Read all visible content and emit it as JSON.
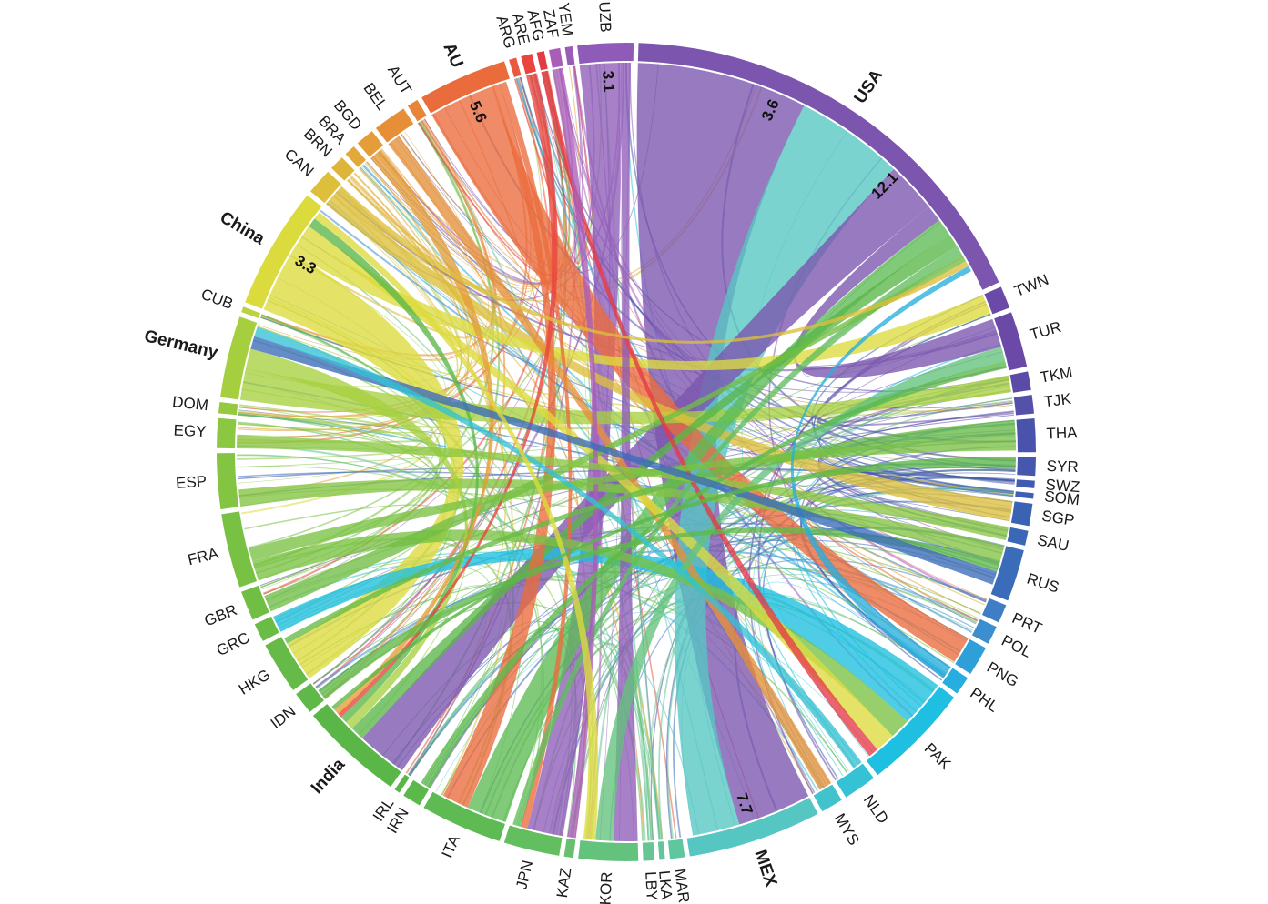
{
  "chart_data": {
    "type": "chord",
    "title": "",
    "nodes": [
      {
        "id": "UZB",
        "label": "UZB",
        "color": "#8e5cb8",
        "weight": 1.5
      },
      {
        "id": "USA",
        "label": "USA",
        "color": "#7b55ae",
        "weight": 12.1,
        "major": true
      },
      {
        "id": "TWN",
        "label": "TWN",
        "color": "#6a4aa6",
        "weight": 0.6
      },
      {
        "id": "TUR",
        "label": "TUR",
        "color": "#6b49a6",
        "weight": 1.5
      },
      {
        "id": "TKM",
        "label": "TKM",
        "color": "#5b4aa6",
        "weight": 0.5
      },
      {
        "id": "TJK",
        "label": "TJK",
        "color": "#5451a8",
        "weight": 0.5
      },
      {
        "id": "THA",
        "label": "THA",
        "color": "#4a53ab",
        "weight": 0.9
      },
      {
        "id": "SYR",
        "label": "SYR",
        "color": "#4657ae",
        "weight": 0.5
      },
      {
        "id": "SWZ",
        "label": "SWZ",
        "color": "#415bb0",
        "weight": 0.2
      },
      {
        "id": "SOM",
        "label": "SOM",
        "color": "#3e60b2",
        "weight": 0.15
      },
      {
        "id": "SGP",
        "label": "SGP",
        "color": "#3b63b4",
        "weight": 0.6
      },
      {
        "id": "SAU",
        "label": "SAU",
        "color": "#3a67b6",
        "weight": 0.4
      },
      {
        "id": "RUS",
        "label": "RUS",
        "color": "#3a6cba",
        "weight": 1.4
      },
      {
        "id": "PRT",
        "label": "PRT",
        "color": "#3f7dc4",
        "weight": 0.5
      },
      {
        "id": "POL",
        "label": "POL",
        "color": "#3b8ecf",
        "weight": 0.5
      },
      {
        "id": "PNG",
        "label": "PNG",
        "color": "#2e9fd9",
        "weight": 0.8
      },
      {
        "id": "PHL",
        "label": "PHL",
        "color": "#26aede",
        "weight": 0.5
      },
      {
        "id": "PAK",
        "label": "PAK",
        "color": "#1ebfe0",
        "weight": 2.9
      },
      {
        "id": "NLD",
        "label": "NLD",
        "color": "#35c2d4",
        "weight": 0.9
      },
      {
        "id": "MYS",
        "label": "MYS",
        "color": "#42c3cb",
        "weight": 0.6
      },
      {
        "id": "MEX",
        "label": "MEX",
        "color": "#56c6c3",
        "weight": 3.6,
        "major": true
      },
      {
        "id": "MAR",
        "label": "MAR",
        "color": "#5ec7a0",
        "weight": 0.4
      },
      {
        "id": "LKA",
        "label": "LKA",
        "color": "#62c69a",
        "weight": 0.15
      },
      {
        "id": "LBY",
        "label": "LBY",
        "color": "#66c593",
        "weight": 0.3
      },
      {
        "id": "KOR",
        "label": "KOR",
        "color": "#63c27c",
        "weight": 1.6
      },
      {
        "id": "KAZ",
        "label": "KAZ",
        "color": "#66c070",
        "weight": 0.25
      },
      {
        "id": "JPN",
        "label": "JPN",
        "color": "#62be5f",
        "weight": 1.5
      },
      {
        "id": "ITA",
        "label": "ITA",
        "color": "#5ebb54",
        "weight": 2.2
      },
      {
        "id": "IRN",
        "label": "IRN",
        "color": "#5bb94c",
        "weight": 0.5
      },
      {
        "id": "IRL",
        "label": "IRL",
        "color": "#58b747",
        "weight": 0.15
      },
      {
        "id": "India",
        "label": "India",
        "color": "#5ab646",
        "weight": 2.8,
        "major": true
      },
      {
        "id": "IDN",
        "label": "IDN",
        "color": "#60b848",
        "weight": 0.6
      },
      {
        "id": "HKG",
        "label": "HKG",
        "color": "#66ba47",
        "weight": 1.4
      },
      {
        "id": "GRC",
        "label": "GRC",
        "color": "#6bbc46",
        "weight": 0.5
      },
      {
        "id": "GBR",
        "label": "GBR",
        "color": "#71be44",
        "weight": 0.8
      },
      {
        "id": "FRA",
        "label": "FRA",
        "color": "#79c143",
        "weight": 2.0
      },
      {
        "id": "ESP",
        "label": "ESP",
        "color": "#83c442",
        "weight": 1.5
      },
      {
        "id": "EGY",
        "label": "EGY",
        "color": "#8cc741",
        "weight": 0.8
      },
      {
        "id": "DOM",
        "label": "DOM",
        "color": "#95c940",
        "weight": 0.3
      },
      {
        "id": "Germany",
        "label": "Germany",
        "color": "#a6cf40",
        "weight": 2.2,
        "major": true
      },
      {
        "id": "CUB",
        "label": "CUB",
        "color": "#bdd23f",
        "weight": 0.15
      },
      {
        "id": "China",
        "label": "China",
        "color": "#dcdb3e",
        "weight": 3.3,
        "major": true
      },
      {
        "id": "CAN",
        "label": "CAN",
        "color": "#ddbf3c",
        "weight": 0.7
      },
      {
        "id": "BRN",
        "label": "BRN",
        "color": "#dfb43b",
        "weight": 0.4
      },
      {
        "id": "BRA",
        "label": "BRA",
        "color": "#e2a83a",
        "weight": 0.3
      },
      {
        "id": "BGD",
        "label": "BGD",
        "color": "#e49d39",
        "weight": 0.5
      },
      {
        "id": "BEL",
        "label": "BEL",
        "color": "#e68f38",
        "weight": 0.9
      },
      {
        "id": "AUT",
        "label": "AUT",
        "color": "#e88538",
        "weight": 0.3
      },
      {
        "id": "AU",
        "label": "AU",
        "color": "#ea6c3c",
        "weight": 2.4,
        "major": true
      },
      {
        "id": "ARG",
        "label": "ARG",
        "color": "#ea5a3e",
        "weight": 0.2
      },
      {
        "id": "ARE",
        "label": "ARE",
        "color": "#e9443f",
        "weight": 0.3
      },
      {
        "id": "AFG",
        "label": "AFG",
        "color": "#e43a46",
        "weight": 0.2
      },
      {
        "id": "ZAF",
        "label": "ZAF",
        "color": "#a95db9",
        "weight": 0.3
      },
      {
        "id": "YEM",
        "label": "YEM",
        "color": "#9b5bb9",
        "weight": 0.2
      }
    ],
    "chords": [
      {
        "source": "USA",
        "target": "MEX",
        "value": 12.1,
        "label": "12.1"
      },
      {
        "source": "MEX",
        "target": "USA",
        "value": 7.7,
        "label": "7.7"
      },
      {
        "source": "USA",
        "target": "India",
        "value": 3.6,
        "label": "3.6"
      },
      {
        "source": "UZB",
        "target": "JPN",
        "value": 3.1,
        "label": "3.1"
      },
      {
        "source": "AU",
        "target": "PNG",
        "value": 5.6,
        "label": "5.6"
      },
      {
        "source": "China",
        "target": "HKG",
        "value": 3.3,
        "label": "3.3"
      },
      {
        "source": "PAK",
        "target": "GRC",
        "value": 1.4
      },
      {
        "source": "USA",
        "target": "TUR",
        "value": 1.2
      },
      {
        "source": "Germany",
        "target": "TKM",
        "value": 1.0
      },
      {
        "source": "CAN",
        "target": "SGP",
        "value": 0.8
      },
      {
        "source": "China",
        "target": "TWN",
        "value": 1.0
      },
      {
        "source": "ITA",
        "target": "USA",
        "value": 1.2
      },
      {
        "source": "India",
        "target": "USA",
        "value": 1.0
      },
      {
        "source": "AU",
        "target": "ITA",
        "value": 0.8
      },
      {
        "source": "AU",
        "target": "JPN",
        "value": 0.6
      },
      {
        "source": "UZB",
        "target": "KOR",
        "value": 0.8
      },
      {
        "source": "BEL",
        "target": "MYS",
        "value": 0.4
      },
      {
        "source": "FRA",
        "target": "PAK",
        "value": 0.6
      },
      {
        "source": "ESP",
        "target": "RUS",
        "value": 0.5
      },
      {
        "source": "China",
        "target": "PAK",
        "value": 0.6
      },
      {
        "source": "Germany",
        "target": "India",
        "value": 0.6
      },
      {
        "source": "India",
        "target": "China",
        "value": 0.5
      },
      {
        "source": "KOR",
        "target": "TUR",
        "value": 0.6
      },
      {
        "source": "JPN",
        "target": "USA",
        "value": 0.7
      },
      {
        "source": "GBR",
        "target": "USA",
        "value": 0.5
      },
      {
        "source": "ARE",
        "target": "India",
        "value": 0.3
      },
      {
        "source": "AFG",
        "target": "PAK",
        "value": 0.3
      },
      {
        "source": "ZAF",
        "target": "KAZ",
        "value": 0.3
      },
      {
        "source": "BGD",
        "target": "India",
        "value": 0.4
      },
      {
        "source": "IDN",
        "target": "RUS",
        "value": 0.3
      },
      {
        "source": "HKG",
        "target": "THA",
        "value": 0.5
      },
      {
        "source": "EGY",
        "target": "SAU",
        "value": 0.4
      },
      {
        "source": "FRA",
        "target": "THA",
        "value": 0.4
      },
      {
        "source": "CAN",
        "target": "USA",
        "value": 0.4
      },
      {
        "source": "PHL",
        "target": "USA",
        "value": 0.4
      },
      {
        "source": "IRN",
        "target": "TUR",
        "value": 0.3
      },
      {
        "source": "RUS",
        "target": "Germany",
        "value": 0.4
      },
      {
        "source": "NLD",
        "target": "Germany",
        "value": 0.3
      },
      {
        "source": "China",
        "target": "KOR",
        "value": 0.4
      },
      {
        "source": "India",
        "target": "SYR",
        "value": 0.3
      }
    ],
    "value_labels": [
      {
        "node": "AU",
        "text": "5.6"
      },
      {
        "node": "UZB",
        "text": "3.1"
      },
      {
        "node": "USA",
        "text": "3.6"
      },
      {
        "node": "USA",
        "text": "12.1"
      },
      {
        "node": "China",
        "text": "3.3"
      },
      {
        "node": "MEX",
        "text": "7.7"
      }
    ]
  }
}
